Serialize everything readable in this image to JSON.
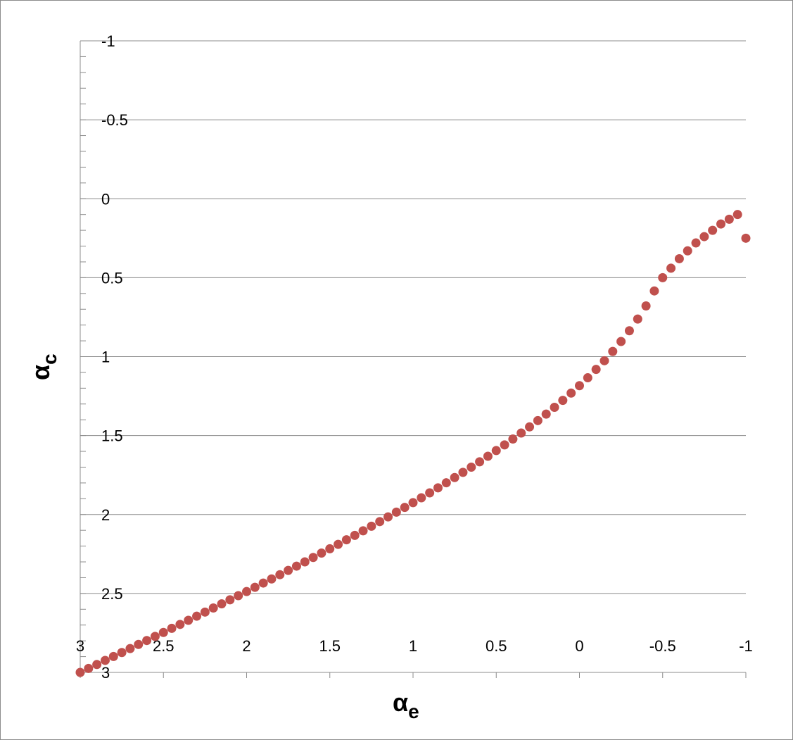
{
  "chart_data": {
    "type": "scatter",
    "title": "",
    "xlabel": "α",
    "xlabel_sub": "e",
    "ylabel": "α",
    "ylabel_sub": "c",
    "xlim": [
      3,
      -1
    ],
    "ylim": [
      3,
      -1
    ],
    "x_reversed": true,
    "y_reversed": true,
    "grid": "horizontal",
    "legend": "none",
    "marker_color": "#C0504D",
    "gridline_color": "#8c8c8c",
    "x_ticks": [
      "3",
      "2.5",
      "2",
      "1.5",
      "1",
      "0.5",
      "0",
      "-0.5",
      "-1"
    ],
    "y_ticks": [
      "-1",
      "-0.5",
      "0",
      "0.5",
      "1",
      "1.5",
      "2",
      "2.5",
      "3"
    ],
    "series": [
      {
        "x": [
          3.0,
          2.95,
          2.9,
          2.85,
          2.8,
          2.75,
          2.7,
          2.65,
          2.6,
          2.55,
          2.5,
          2.45,
          2.4,
          2.35,
          2.3,
          2.25,
          2.2,
          2.15,
          2.1,
          2.05,
          2.0,
          1.95,
          1.9,
          1.85,
          1.8,
          1.75,
          1.7,
          1.65,
          1.6,
          1.55,
          1.5,
          1.45,
          1.4,
          1.35,
          1.3,
          1.25,
          1.2,
          1.15,
          1.1,
          1.05,
          1.0,
          0.95,
          0.9,
          0.85,
          0.8,
          0.75,
          0.7,
          0.65,
          0.6,
          0.55,
          0.5,
          0.45,
          0.4,
          0.35,
          0.3,
          0.25,
          0.2,
          0.15,
          0.1,
          0.05,
          0.0,
          -0.05,
          -0.1,
          -0.15,
          -0.2,
          -0.25,
          -0.3,
          -0.35,
          -0.4,
          -0.45,
          -0.5,
          -0.55,
          -0.6,
          -0.65,
          -0.7,
          -0.75,
          -0.8,
          -0.85,
          -0.9,
          -0.95,
          -1.0
        ],
        "y": [
          3.0,
          2.975,
          2.95,
          2.924,
          2.899,
          2.874,
          2.849,
          2.823,
          2.798,
          2.772,
          2.747,
          2.721,
          2.696,
          2.67,
          2.644,
          2.618,
          2.592,
          2.566,
          2.54,
          2.514,
          2.488,
          2.461,
          2.434,
          2.408,
          2.381,
          2.354,
          2.327,
          2.3,
          2.272,
          2.244,
          2.217,
          2.189,
          2.16,
          2.132,
          2.103,
          2.074,
          2.045,
          2.015,
          1.985,
          1.955,
          1.925,
          1.894,
          1.863,
          1.831,
          1.799,
          1.766,
          1.733,
          1.7,
          1.666,
          1.631,
          1.595,
          1.559,
          1.522,
          1.484,
          1.445,
          1.405,
          1.364,
          1.321,
          1.277,
          1.231,
          1.184,
          1.134,
          1.081,
          1.026,
          0.967,
          0.904,
          0.836,
          0.762,
          0.679,
          0.584,
          0.5,
          0.44,
          0.38,
          0.33,
          0.28,
          0.24,
          0.2,
          0.16,
          0.13,
          0.1,
          0.25
        ]
      }
    ]
  }
}
